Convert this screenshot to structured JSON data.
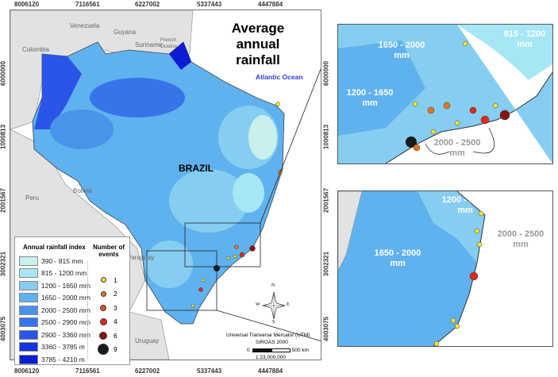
{
  "title": "Average annual rainfall",
  "ocean_label": "Atlantic Ocean",
  "country_label": "BRAZIL",
  "countries": [
    "Venezuela",
    "Guyana",
    "Suriname",
    "French Guiana",
    "Colombia",
    "Peru",
    "Bolivia",
    "Paraguay",
    "Uruguay"
  ],
  "x_ticks": [
    "8006120",
    "7116561",
    "6227002",
    "5337443",
    "4447884"
  ],
  "y_ticks": [
    "6000000",
    "1000813",
    "2001567",
    "3002321",
    "4003075"
  ],
  "legend": {
    "rain_title": "Annual rainfall index",
    "classes": [
      {
        "label": "390 - 815 mm",
        "color": "#c8f1ec"
      },
      {
        "label": "815 - 1200 mm",
        "color": "#a6e6f5"
      },
      {
        "label": "1200 - 1650 mm",
        "color": "#86cdf2"
      },
      {
        "label": "1650 - 2000 mm",
        "color": "#5fb2ee"
      },
      {
        "label": "2000 - 2500 mm",
        "color": "#4a93ea"
      },
      {
        "label": "2500 - 2900 mm",
        "color": "#3774ea"
      },
      {
        "label": "2900 - 3360 mm",
        "color": "#2a55e6"
      },
      {
        "label": "3360 - 3785 m",
        "color": "#1534e0"
      },
      {
        "label": "3785 - 4210 m",
        "color": "#0b1cd2"
      }
    ],
    "events_title": "Number of events",
    "events": [
      {
        "label": "1",
        "color": "#f2e63a"
      },
      {
        "label": "2",
        "color": "#e4761c"
      },
      {
        "label": "3",
        "color": "#e9561d"
      },
      {
        "label": "4",
        "color": "#e3271b"
      },
      {
        "label": "6",
        "color": "#8a1414"
      },
      {
        "label": "9",
        "color": "#1a1a1a"
      }
    ]
  },
  "compass": {
    "n": "N",
    "s": "S",
    "e": "E",
    "w": "W"
  },
  "projection": "Universal Tranverse Mercator (UTM)",
  "datum": "SIRGAS 2000",
  "scale_start": "0",
  "scale_end": "500 km",
  "scale_ratio": "1:23,000,000",
  "inset1": {
    "labels": [
      "815 - 1200 mm",
      "1650 - 2000 mm",
      "1200 - 1650 mm",
      "2000 - 2500 mm"
    ],
    "y_ticks": [
      "6000000",
      "1000813"
    ]
  },
  "inset2": {
    "labels": [
      "1200 - 1650 mm",
      "2000 - 2500 mm",
      "1650 - 2000 mm"
    ],
    "y_ticks": [
      "2001567",
      "3002321",
      "4003075"
    ]
  }
}
